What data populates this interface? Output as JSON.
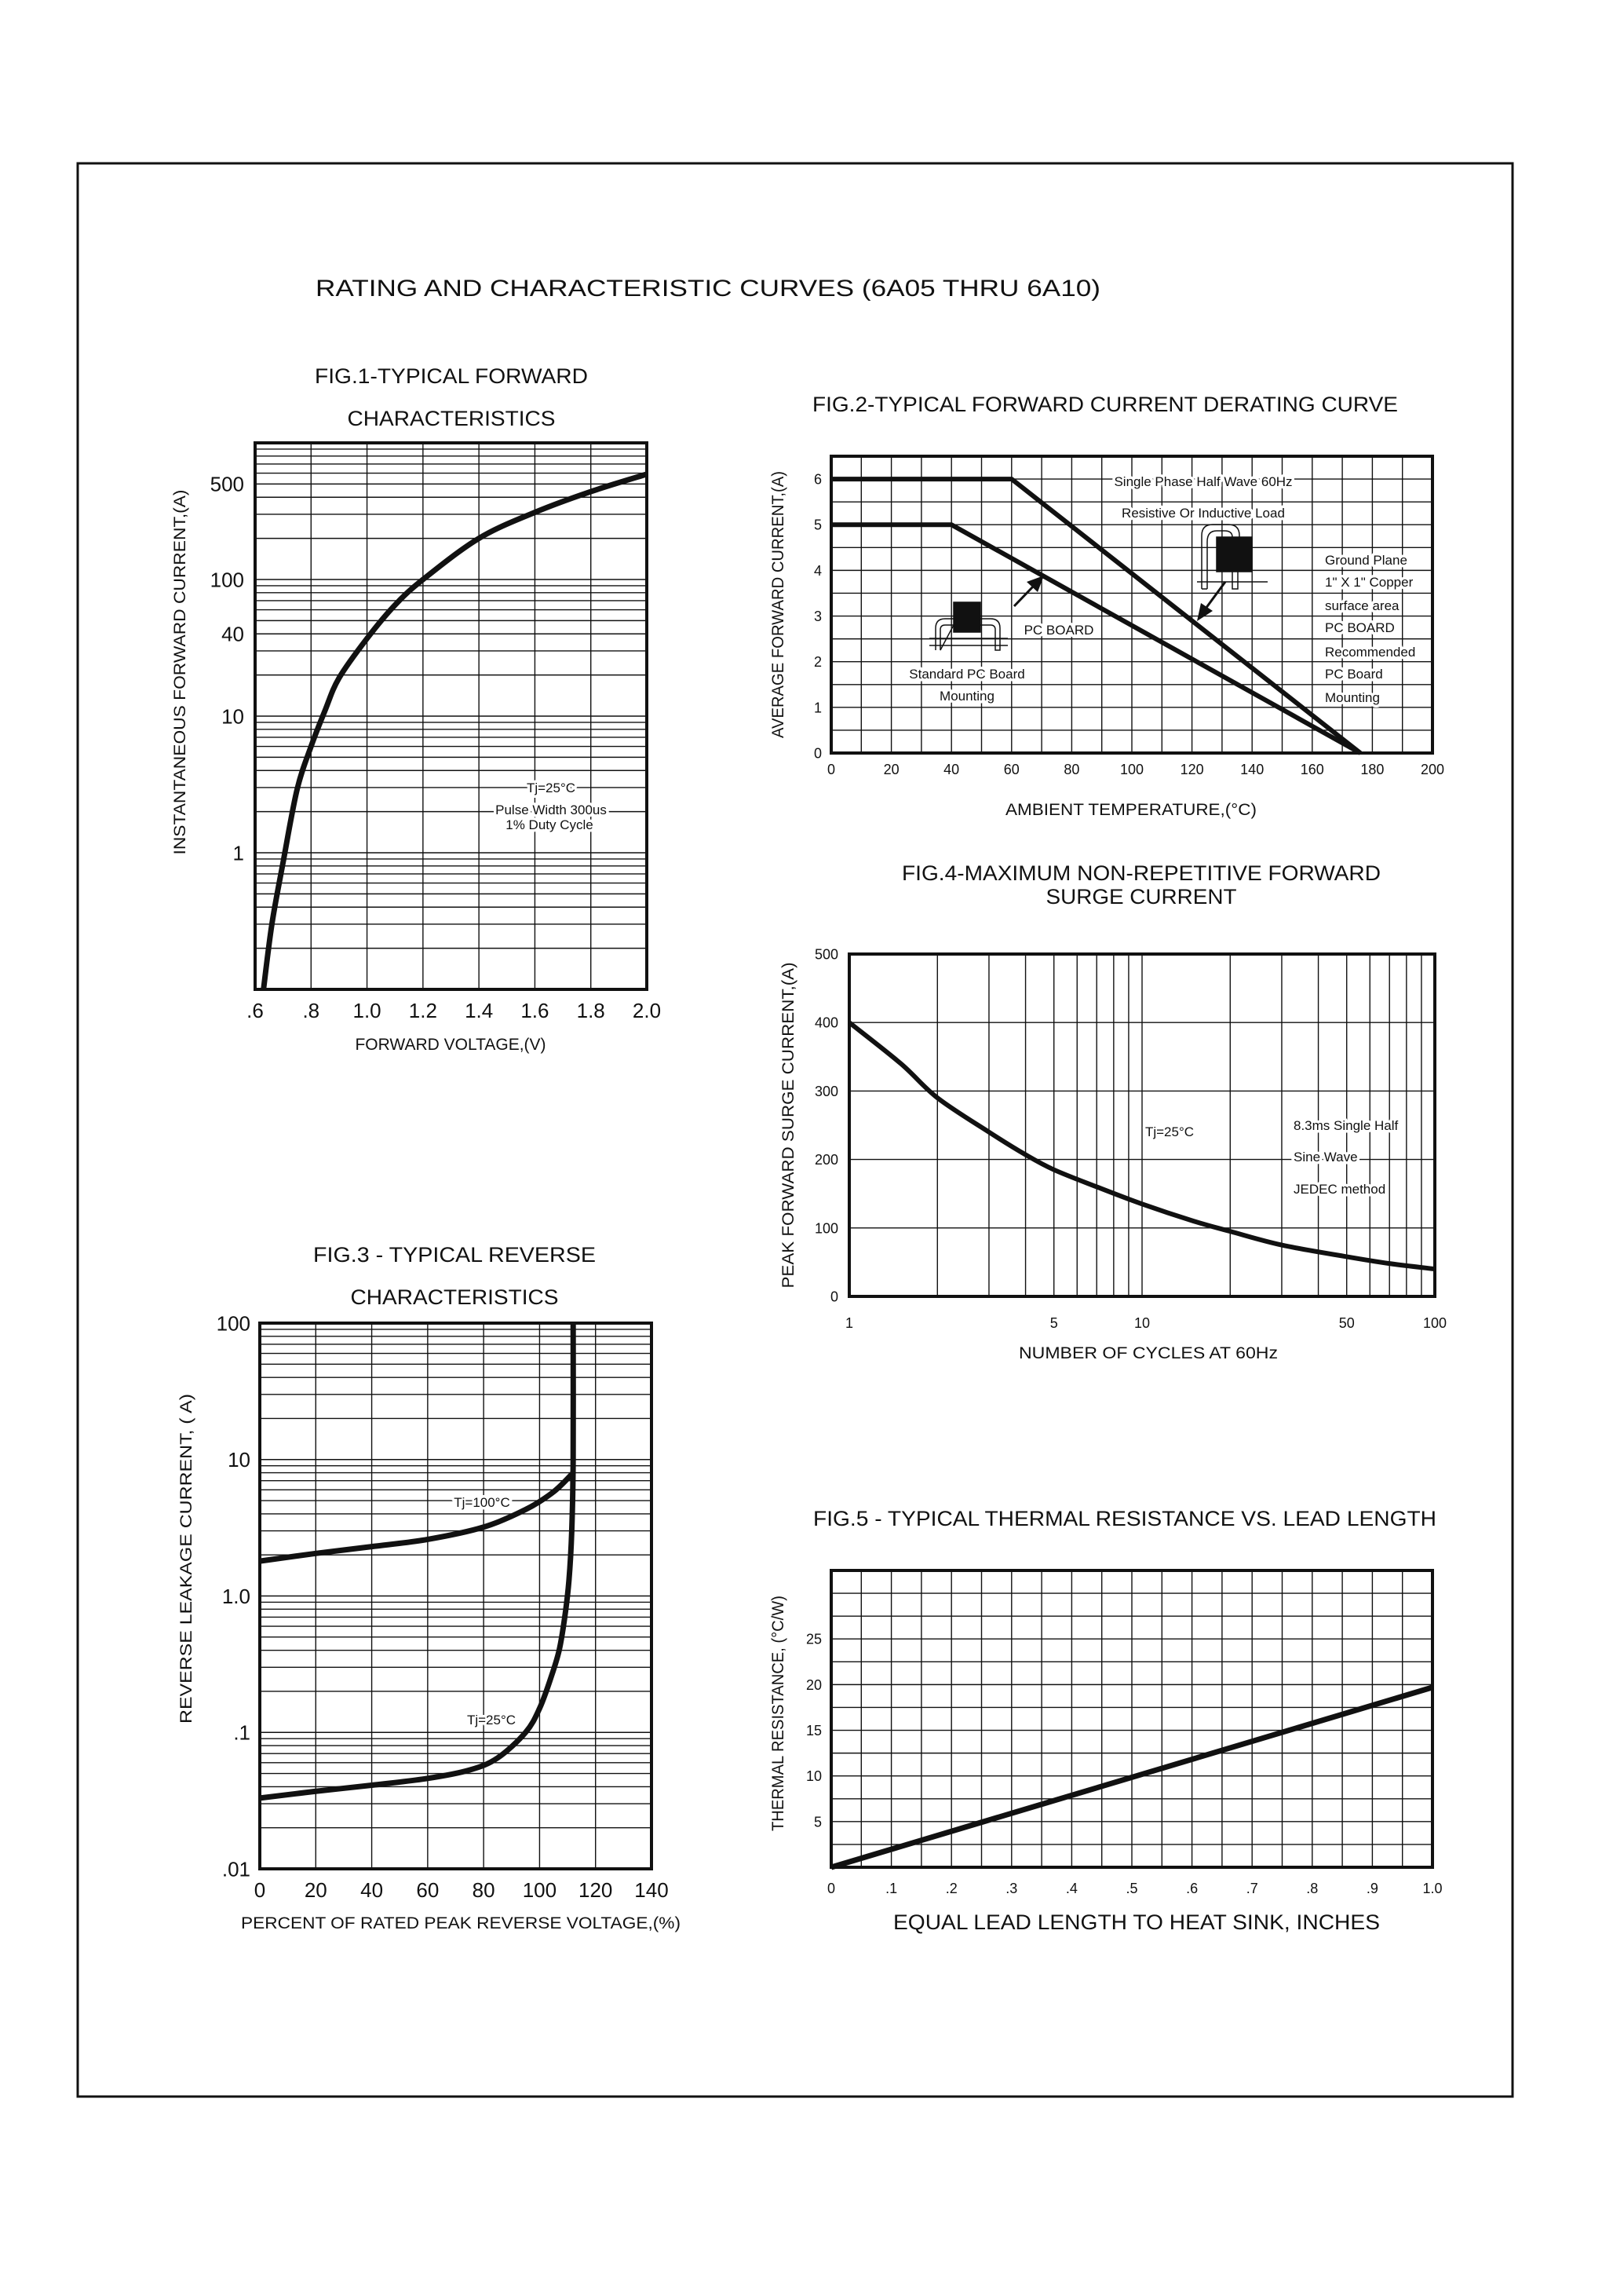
{
  "page": {
    "title": "RATING AND CHARACTERISTIC CURVES (6A05 THRU 6A10)"
  },
  "colors": {
    "ink": "#111111",
    "background": "#ffffff"
  },
  "chart_data": [
    {
      "id": "fig1",
      "type": "line",
      "title_lines": [
        "FIG.1-TYPICAL FORWARD",
        "CHARACTERISTICS"
      ],
      "xlabel": "FORWARD VOLTAGE,(V)",
      "ylabel": "INSTANTANEOUS FORWARD CURRENT,(A)",
      "x_scale": "linear",
      "y_scale": "log",
      "xlim": [
        0.6,
        2.0
      ],
      "ylim": [
        0.1,
        1000
      ],
      "x_ticks": [
        0.6,
        0.8,
        1.0,
        1.2,
        1.4,
        1.6,
        1.8,
        2.0
      ],
      "x_tick_labels": [
        ".6",
        ".8",
        "1.0",
        "1.2",
        "1.4",
        "1.6",
        "1.8",
        "2.0"
      ],
      "y_ticks": [
        500,
        100,
        40,
        10,
        1
      ],
      "y_tick_labels": [
        "500",
        "100",
        "40",
        "10",
        "1"
      ],
      "grid": true,
      "annotations": [
        "Tj=25°C",
        "Pulse Width 300us",
        "1% Duty Cycle"
      ],
      "series": [
        {
          "x": [
            0.63,
            0.66,
            0.7,
            0.75,
            0.8,
            0.85,
            0.9,
            1.0,
            1.1,
            1.2,
            1.4,
            1.6,
            1.8,
            2.0
          ],
          "y": [
            0.1,
            0.3,
            0.85,
            2.9,
            6,
            11,
            19,
            37,
            65,
            100,
            200,
            310,
            440,
            590
          ]
        }
      ]
    },
    {
      "id": "fig2",
      "type": "line",
      "title": "FIG.2-TYPICAL FORWARD CURRENT DERATING CURVE",
      "xlabel": "AMBIENT TEMPERATURE,(°C)",
      "ylabel": "AVERAGE FORWARD CURRENT,(A)",
      "x_scale": "linear",
      "y_scale": "linear",
      "xlim": [
        0,
        200
      ],
      "ylim": [
        0,
        6.5
      ],
      "x_ticks": [
        0,
        20,
        40,
        60,
        80,
        100,
        120,
        140,
        160,
        180,
        200
      ],
      "x_tick_labels": [
        "0",
        "20",
        "40",
        "60",
        "80",
        "100",
        "120",
        "140",
        "160",
        "180",
        "200"
      ],
      "y_ticks": [
        0,
        1,
        2,
        3,
        4,
        5,
        6
      ],
      "y_tick_labels": [
        "0",
        "1",
        "2",
        "3",
        "4",
        "5",
        "6"
      ],
      "grid": true,
      "annotations": {
        "conditions": [
          "Single Phase Half Wave 60Hz",
          "Resistive Or Inductive Load"
        ],
        "recommended": [
          "Ground Plane",
          "1\" X 1\" Copper",
          "surface area",
          "PC BOARD",
          "Recommended",
          "PC Board",
          "Mounting"
        ],
        "pc_board": "PC BOARD",
        "standard": [
          "Standard PC Board",
          "Mounting"
        ]
      },
      "icons": [
        "pc-board-mounting-icon",
        "ground-plane-mounting-icon",
        "arrow-icon"
      ],
      "series": [
        {
          "x": [
            0,
            60,
            176
          ],
          "y": [
            6,
            6,
            0
          ]
        },
        {
          "x": [
            0,
            40,
            176
          ],
          "y": [
            5,
            5,
            0
          ]
        }
      ]
    },
    {
      "id": "fig3",
      "type": "line",
      "title_lines": [
        "FIG.3 - TYPICAL REVERSE",
        "CHARACTERISTICS"
      ],
      "xlabel": "PERCENT OF RATED PEAK REVERSE VOLTAGE,(%)",
      "ylabel": "REVERSE LEAKAGE CURRENT, (  A)",
      "x_scale": "linear",
      "y_scale": "log",
      "xlim": [
        0,
        140
      ],
      "ylim": [
        0.01,
        100
      ],
      "x_ticks": [
        0,
        20,
        40,
        60,
        80,
        100,
        120,
        140
      ],
      "x_tick_labels": [
        "0",
        "20",
        "40",
        "60",
        "80",
        "100",
        "120",
        "140"
      ],
      "y_ticks": [
        100,
        10,
        1,
        0.1,
        0.01
      ],
      "y_tick_labels": [
        "100",
        "10",
        "1.0",
        ".1",
        ".01"
      ],
      "grid": true,
      "series": [
        {
          "name": "Tj=100°C",
          "x": [
            0,
            20,
            40,
            60,
            80,
            95,
            105,
            112
          ],
          "y": [
            1.8,
            2.05,
            2.3,
            2.6,
            3.2,
            4.3,
            5.8,
            8
          ]
        },
        {
          "name": "Tj=25°C",
          "x": [
            0,
            20,
            40,
            60,
            75,
            85,
            95,
            100,
            104,
            107,
            109,
            110.5,
            111.5,
            112,
            112
          ],
          "y": [
            0.033,
            0.037,
            0.041,
            0.046,
            0.053,
            0.065,
            0.1,
            0.15,
            0.25,
            0.4,
            0.7,
            1.3,
            3,
            10,
            100
          ]
        }
      ]
    },
    {
      "id": "fig4",
      "type": "line",
      "title_lines": [
        "FIG.4-MAXIMUM NON-REPETITIVE FORWARD",
        "SURGE CURRENT"
      ],
      "xlabel": "NUMBER OF CYCLES AT 60Hz",
      "ylabel": "PEAK FORWARD SURGE CURRENT,(A)",
      "x_scale": "log",
      "y_scale": "linear",
      "xlim": [
        1,
        100
      ],
      "ylim": [
        0,
        500
      ],
      "x_ticks": [
        1,
        5,
        10,
        50,
        100
      ],
      "x_tick_labels": [
        "1",
        "5",
        "10",
        "50",
        "100"
      ],
      "y_ticks": [
        0,
        100,
        200,
        300,
        400,
        500
      ],
      "y_tick_labels": [
        "0",
        "100",
        "200",
        "300",
        "400",
        "500"
      ],
      "grid": true,
      "annotations": {
        "temp": "Tj=25°C",
        "conditions": [
          "8.3ms Single Half",
          "Sine Wave",
          "JEDEC method"
        ]
      },
      "series": [
        {
          "x": [
            1,
            1.5,
            2,
            3,
            4,
            5,
            7,
            10,
            15,
            20,
            30,
            50,
            70,
            100
          ],
          "y": [
            400,
            340,
            290,
            240,
            207,
            185,
            160,
            135,
            110,
            95,
            75,
            58,
            48,
            40
          ]
        }
      ]
    },
    {
      "id": "fig5",
      "type": "line",
      "title": "FIG.5 - TYPICAL THERMAL RESISTANCE VS. LEAD LENGTH",
      "xlabel": "EQUAL LEAD LENGTH TO HEAT SINK, INCHES",
      "ylabel": "THERMAL RESISTANCE, (°C/W)",
      "x_scale": "linear",
      "y_scale": "linear",
      "xlim": [
        0,
        1.0
      ],
      "ylim": [
        0,
        32.5
      ],
      "x_ticks": [
        0,
        0.1,
        0.2,
        0.3,
        0.4,
        0.5,
        0.6,
        0.7,
        0.8,
        0.9,
        1.0
      ],
      "x_tick_labels": [
        "0",
        ".1",
        ".2",
        ".3",
        ".4",
        ".5",
        ".6",
        ".7",
        ".8",
        ".9",
        "1.0"
      ],
      "y_ticks": [
        5,
        10,
        15,
        20,
        25
      ],
      "y_tick_labels": [
        "5",
        "10",
        "15",
        "20",
        "25"
      ],
      "grid": true,
      "series": [
        {
          "x": [
            0,
            1.0
          ],
          "y": [
            0,
            19.7
          ]
        }
      ]
    }
  ]
}
